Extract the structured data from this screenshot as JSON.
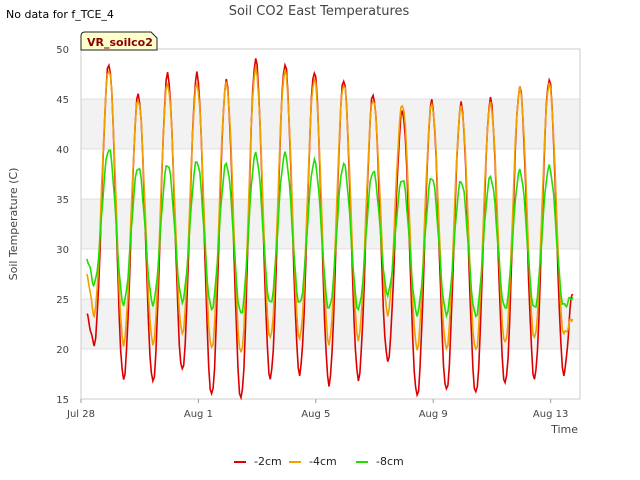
{
  "note": "No data for f_TCE_4",
  "chart_data": {
    "type": "line",
    "title": "Soil CO2 East Temperatures",
    "xlabel": "Time",
    "ylabel": "Soil Temperature (C)",
    "xlim": [
      0,
      17
    ],
    "ylim": [
      15,
      50
    ],
    "yticks": [
      15,
      20,
      25,
      30,
      35,
      40,
      45,
      50
    ],
    "xticks": [
      {
        "value": 0,
        "label": "Jul 28"
      },
      {
        "value": 4,
        "label": "Aug 1"
      },
      {
        "value": 8,
        "label": "Aug 5"
      },
      {
        "value": 12,
        "label": "Aug 9"
      },
      {
        "value": 16,
        "label": "Aug 13"
      }
    ],
    "badge": "VR_soilco2",
    "series": [
      {
        "name": "-2cm",
        "color": "#dd0000",
        "start": 23.3,
        "end": 25.5,
        "peaks": [
          48.5,
          45.5,
          47.5,
          47.5,
          46.8,
          49.0,
          48.5,
          47.8,
          47.0,
          45.5,
          43.8,
          44.8,
          44.5,
          45.0,
          46.2,
          47.0
        ],
        "troughs": [
          20.5,
          17.0,
          16.7,
          17.8,
          15.3,
          15.0,
          17.0,
          17.5,
          16.5,
          17.0,
          18.8,
          15.3,
          15.8,
          15.5,
          16.5,
          17.0,
          17.5
        ]
      },
      {
        "name": "-4cm",
        "color": "#f0a000",
        "start": 27.3,
        "end": 23.0,
        "peaks": [
          48.0,
          45.0,
          46.5,
          46.5,
          46.5,
          48.0,
          47.8,
          47.0,
          46.5,
          45.0,
          44.5,
          44.5,
          44.2,
          44.5,
          46.0,
          46.5
        ],
        "troughs": [
          23.5,
          20.5,
          20.5,
          21.5,
          20.0,
          19.5,
          21.0,
          21.0,
          20.5,
          21.0,
          23.5,
          20.0,
          20.0,
          19.8,
          20.5,
          21.0,
          21.5
        ]
      },
      {
        "name": "-8cm",
        "color": "#22dd00",
        "start": 29.0,
        "end": 25.2,
        "peaks": [
          40.0,
          38.2,
          38.5,
          38.8,
          38.5,
          39.5,
          39.5,
          38.8,
          38.5,
          37.8,
          37.0,
          37.2,
          36.8,
          37.2,
          37.8,
          38.2
        ],
        "troughs": [
          26.5,
          24.5,
          24.5,
          24.8,
          24.0,
          23.5,
          24.5,
          24.5,
          24.0,
          24.0,
          25.5,
          23.5,
          23.5,
          23.3,
          24.0,
          24.0,
          24.3
        ]
      }
    ]
  }
}
